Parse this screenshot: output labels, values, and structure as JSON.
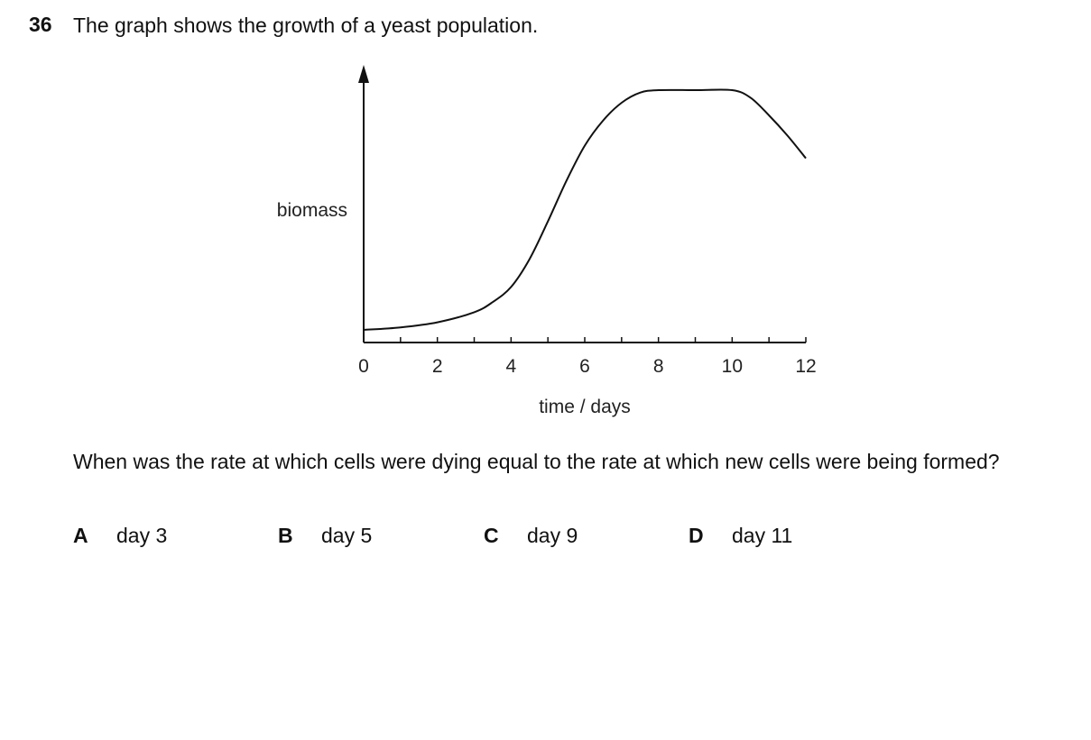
{
  "question": {
    "number": "36",
    "stem": "The graph shows the growth of a yeast population.",
    "prompt": "When was the rate at which cells were dying equal to the rate at which new cells were being formed?"
  },
  "options": [
    {
      "letter": "A",
      "text": "day 3"
    },
    {
      "letter": "B",
      "text": "day 5"
    },
    {
      "letter": "C",
      "text": "day 9"
    },
    {
      "letter": "D",
      "text": "day 11"
    }
  ],
  "chart_data": {
    "type": "line",
    "title": "",
    "xlabel": "time / days",
    "ylabel": "biomass",
    "xlim": [
      0,
      12
    ],
    "ylim": [
      0,
      1
    ],
    "x_tick_labels": [
      "0",
      "2",
      "4",
      "6",
      "8",
      "10",
      "12"
    ],
    "y_tick_labels": [],
    "grid": false,
    "series": [
      {
        "x": [
          0,
          1,
          2,
          3,
          3.5,
          4,
          4.5,
          5,
          5.5,
          6,
          6.5,
          7,
          7.5,
          8,
          9,
          10,
          10.5,
          11,
          11.5,
          12
        ],
        "y": [
          0.05,
          0.06,
          0.08,
          0.12,
          0.16,
          0.22,
          0.33,
          0.48,
          0.64,
          0.78,
          0.88,
          0.95,
          0.99,
          1.0,
          1.0,
          1.0,
          0.97,
          0.9,
          0.82,
          0.73
        ]
      }
    ]
  }
}
